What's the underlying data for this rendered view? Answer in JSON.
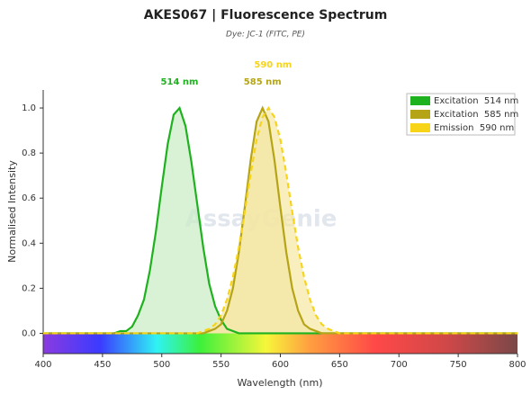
{
  "chart_data": {
    "type": "line",
    "title": "AKES067  |  Fluorescence Spectrum",
    "subtitle": "Dye: JC-1 (FITC, PE)",
    "x_label": "Wavelength (nm)",
    "y_label": "Normalised Intensity",
    "watermark": "AssayGenie",
    "x": [
      400,
      405,
      410,
      415,
      420,
      425,
      430,
      435,
      440,
      445,
      450,
      455,
      460,
      465,
      470,
      475,
      480,
      485,
      490,
      495,
      500,
      505,
      510,
      515,
      520,
      525,
      530,
      535,
      540,
      545,
      550,
      555,
      560,
      565,
      570,
      575,
      580,
      585,
      590,
      595,
      600,
      605,
      610,
      615,
      620,
      625,
      630,
      635,
      640,
      645,
      650,
      655,
      660,
      665,
      670,
      675,
      680,
      685,
      690,
      695,
      700,
      705,
      710,
      715,
      720,
      725,
      730,
      735,
      740,
      745,
      750,
      755,
      760,
      765,
      770,
      775,
      780,
      785,
      790,
      795,
      800
    ],
    "series": [
      {
        "name": "Excitation  514 nm",
        "peak_label": "514 nm",
        "color": "#1fb21f",
        "fill": "#c9ecc4",
        "dashed": false,
        "values": [
          0,
          0,
          0,
          0,
          0,
          0,
          0,
          0,
          0,
          0,
          0,
          0,
          0,
          0.01,
          0.01,
          0.03,
          0.08,
          0.15,
          0.28,
          0.45,
          0.65,
          0.84,
          0.97,
          1.0,
          0.92,
          0.76,
          0.57,
          0.38,
          0.22,
          0.12,
          0.06,
          0.02,
          0.01,
          0,
          0,
          0,
          0,
          0,
          0,
          0,
          0,
          0,
          0,
          0,
          0,
          0,
          0,
          0,
          0,
          0,
          0,
          0,
          0,
          0,
          0,
          0,
          0,
          0,
          0,
          0,
          0,
          0,
          0,
          0,
          0,
          0,
          0,
          0,
          0,
          0,
          0,
          0,
          0,
          0,
          0,
          0,
          0,
          0,
          0,
          0,
          0
        ]
      },
      {
        "name": "Excitation  585 nm",
        "peak_label": "585 nm",
        "color": "#b5a516",
        "fill": "#ece2a5",
        "dashed": false,
        "values": [
          0,
          0,
          0,
          0,
          0,
          0,
          0,
          0,
          0,
          0,
          0,
          0,
          0,
          0,
          0,
          0,
          0,
          0,
          0,
          0,
          0,
          0,
          0,
          0,
          0,
          0,
          0,
          0,
          0.01,
          0.02,
          0.04,
          0.1,
          0.2,
          0.36,
          0.56,
          0.77,
          0.94,
          1.0,
          0.94,
          0.77,
          0.56,
          0.36,
          0.2,
          0.1,
          0.04,
          0.02,
          0.01,
          0,
          0,
          0,
          0,
          0,
          0,
          0,
          0,
          0,
          0,
          0,
          0,
          0,
          0,
          0,
          0,
          0,
          0,
          0,
          0,
          0,
          0,
          0,
          0,
          0,
          0,
          0,
          0,
          0,
          0,
          0,
          0,
          0,
          0
        ]
      },
      {
        "name": "Emission  590 nm",
        "peak_label": "590 nm",
        "color": "#f7d417",
        "fill": "#f6e7a2",
        "dashed": true,
        "values": [
          0,
          0,
          0,
          0,
          0,
          0,
          0,
          0,
          0,
          0,
          0,
          0,
          0,
          0,
          0,
          0,
          0,
          0,
          0,
          0,
          0,
          0,
          0,
          0,
          0,
          0,
          0,
          0.01,
          0.02,
          0.04,
          0.08,
          0.15,
          0.25,
          0.38,
          0.54,
          0.71,
          0.86,
          0.96,
          1.0,
          0.96,
          0.86,
          0.71,
          0.54,
          0.38,
          0.25,
          0.15,
          0.08,
          0.04,
          0.02,
          0.01,
          0,
          0,
          0,
          0,
          0,
          0,
          0,
          0,
          0,
          0,
          0,
          0,
          0,
          0,
          0,
          0,
          0,
          0,
          0,
          0,
          0,
          0,
          0,
          0,
          0,
          0,
          0,
          0,
          0,
          0,
          0
        ]
      }
    ],
    "xlim": [
      400,
      800
    ],
    "xticks": [
      400,
      450,
      500,
      550,
      600,
      650,
      700,
      750,
      800
    ],
    "ylim": [
      -0.09,
      1.08
    ],
    "yticks": [
      {
        "value": 0,
        "label": "0.0"
      },
      0.2,
      0.4,
      0.6,
      0.8,
      {
        "value": 1,
        "label": "1.0"
      }
    ],
    "legend": "top-right"
  }
}
